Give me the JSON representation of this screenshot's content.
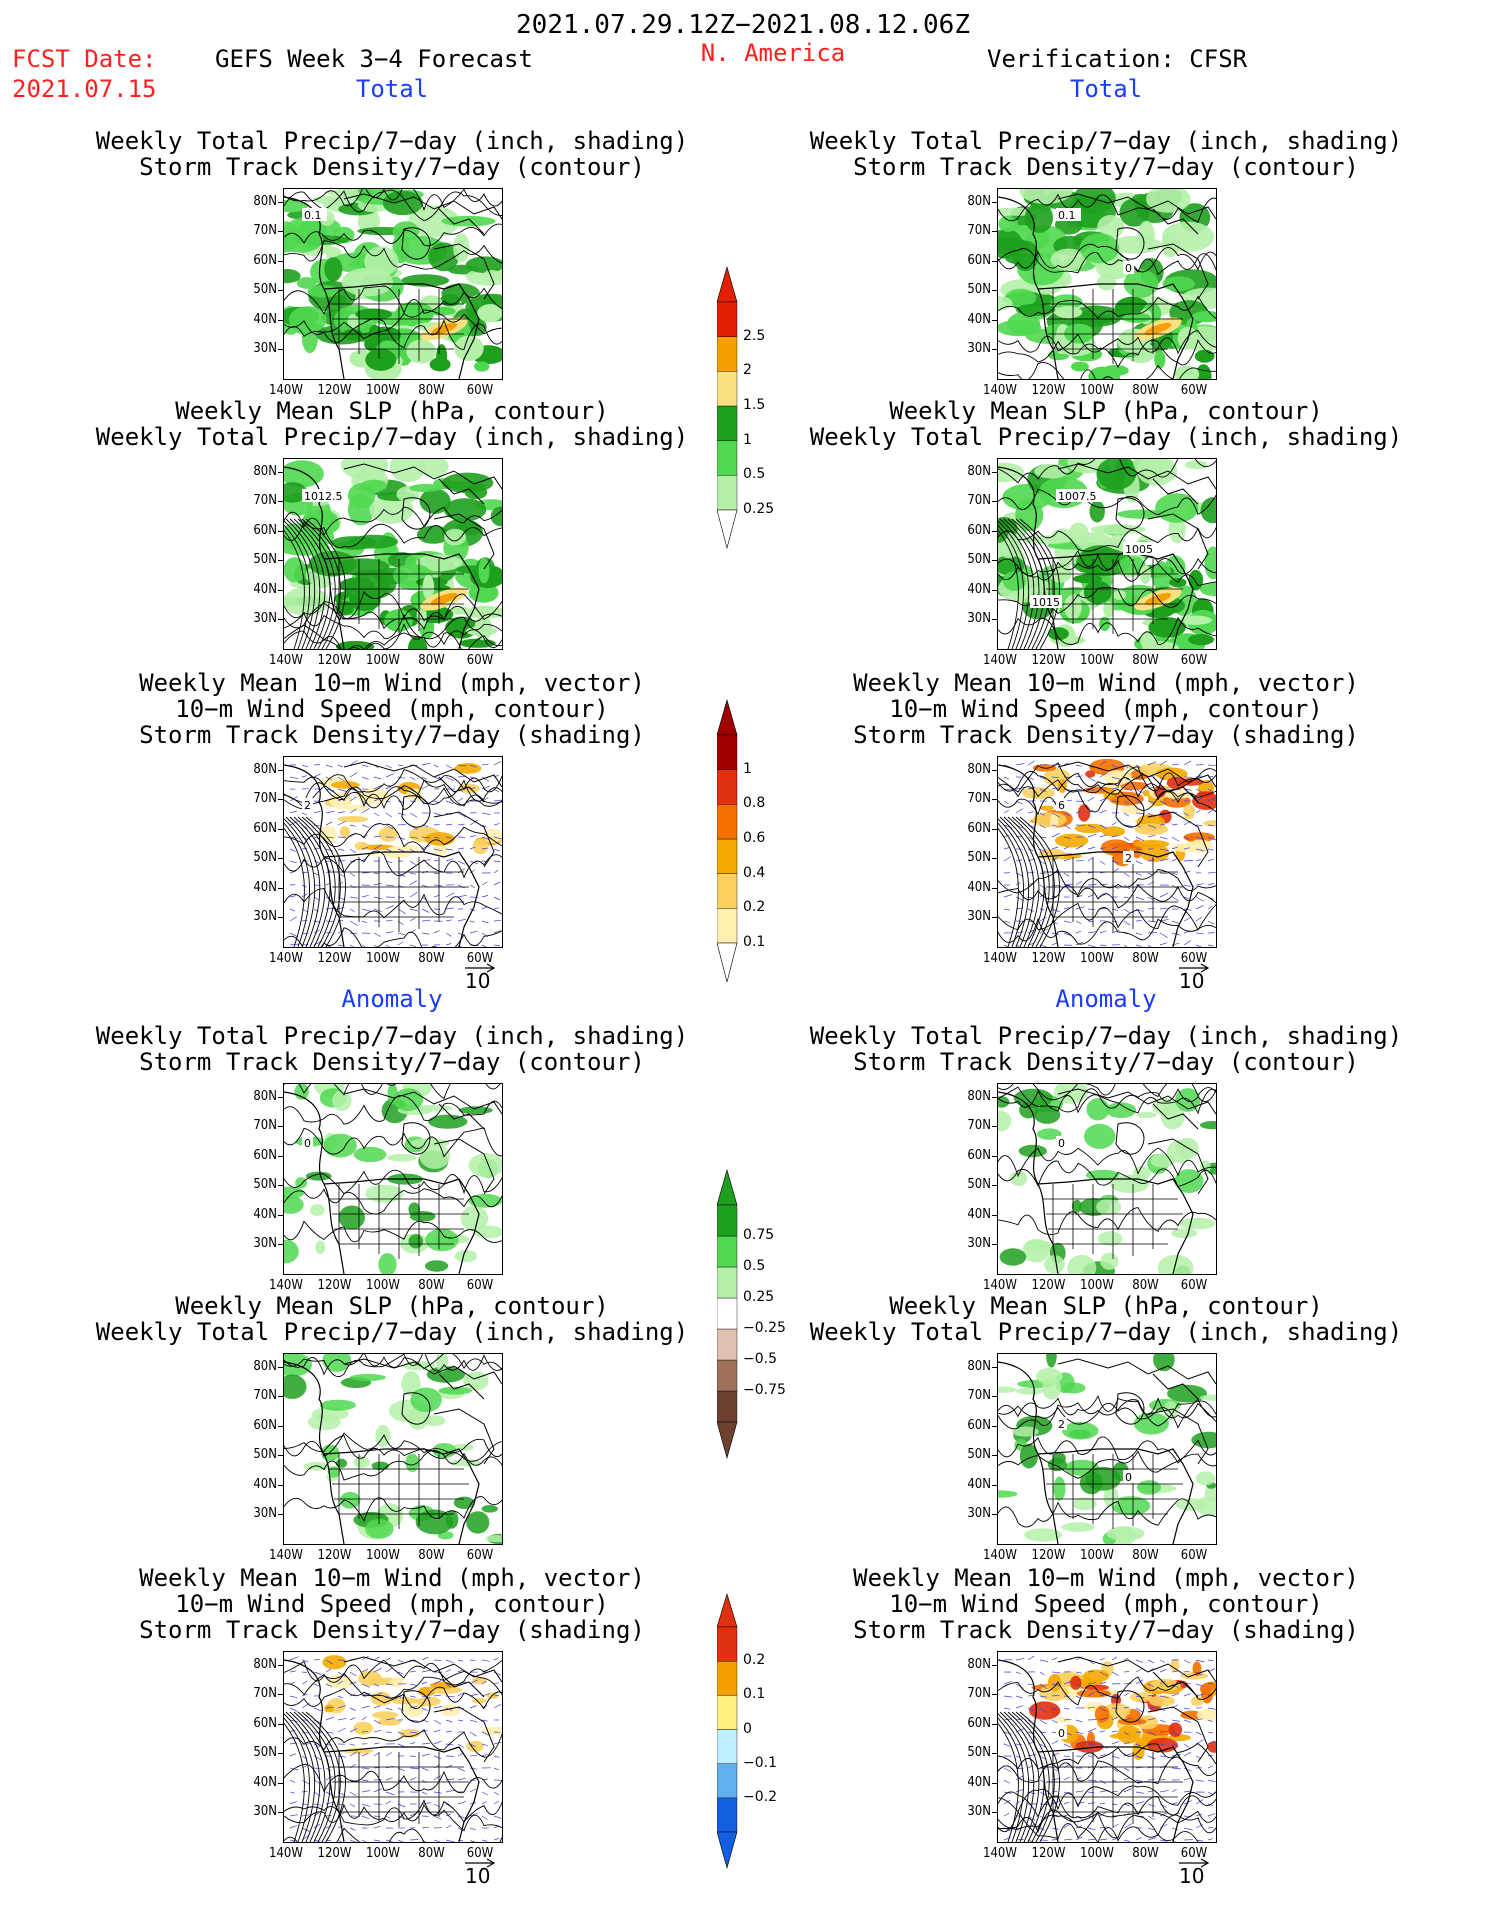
{
  "header": {
    "date_range": "2021.07.29.12Z−2021.08.12.06Z",
    "fcst_label": "FCST Date:",
    "fcst_date": "2021.07.15",
    "model_title": "GEFS Week 3−4 Forecast",
    "region": "N. America",
    "verification": "Verification: CFSR"
  },
  "sections": {
    "total_left": "Total",
    "total_right": "Total",
    "anomaly_left": "Anomaly",
    "anomaly_right": "Anomaly"
  },
  "panel_titles": {
    "precip_storm": [
      "Weekly Total Precip/7−day (inch, shading)",
      "Storm Track Density/7−day (contour)"
    ],
    "slp_precip": [
      "Weekly Mean SLP (hPa, contour)",
      "Weekly Total Precip/7−day (inch, shading)"
    ],
    "wind_storm": [
      "Weekly Mean 10−m Wind (mph, vector)",
      "10−m Wind Speed (mph, contour)",
      "Storm Track Density/7−day (shading)"
    ]
  },
  "axes": {
    "y_ticks": [
      "80N",
      "70N",
      "60N",
      "50N",
      "40N",
      "30N"
    ],
    "x_ticks": [
      "140W",
      "120W",
      "100W",
      "80W",
      "60W"
    ]
  },
  "vector_ref": "10",
  "colors": {
    "red_text": "#ff2020",
    "blue_text": "#1a3cff",
    "precip_light": "#b4f0a8",
    "precip_mid": "#50d850",
    "precip_dark": "#1ea01e",
    "precip_yellow": "#fae080",
    "precip_orange": "#f5a000",
    "precip_red": "#e02000",
    "storm_brown": "#8c5a4a"
  },
  "colorbars": [
    {
      "id": "total_precip",
      "labels": [
        "0.25",
        "0.5",
        "1",
        "1.5",
        "2",
        "2.5"
      ],
      "colors": [
        "#b4f0a8",
        "#50d850",
        "#1ea01e",
        "#fae080",
        "#f5a000",
        "#e02000"
      ]
    },
    {
      "id": "total_storm",
      "labels": [
        "0.1",
        "0.2",
        "0.4",
        "0.6",
        "0.8",
        "1"
      ],
      "colors": [
        "#fff0b0",
        "#fad060",
        "#f5a800",
        "#f57000",
        "#e03010",
        "#a00000"
      ]
    },
    {
      "id": "anom_precip",
      "labels": [
        "−0.75",
        "−0.5",
        "−0.25",
        "0.25",
        "0.5",
        "0.75"
      ],
      "colors": [
        "#6e4030",
        "#a0705a",
        "#e0c0b0",
        "#ffffff",
        "#b4f0a8",
        "#50d850",
        "#1ea01e"
      ]
    },
    {
      "id": "anom_storm",
      "labels": [
        "−0.2",
        "−0.1",
        "0",
        "0.1",
        "0.2"
      ],
      "colors": [
        "#1060e0",
        "#60b0f0",
        "#c0f0ff",
        "#fff080",
        "#f5a000",
        "#e03010"
      ]
    }
  ],
  "chart_data": [
    {
      "type": "heatmap",
      "panel": "Total / GEFS / precip + storm track",
      "contour_labels": [
        "0.1"
      ]
    },
    {
      "type": "heatmap",
      "panel": "Total / CFSR / precip + storm track",
      "contour_labels": [
        "0.1",
        "0"
      ]
    },
    {
      "type": "heatmap",
      "panel": "Total / GEFS / SLP + precip",
      "contour_labels": [
        "1012.5"
      ]
    },
    {
      "type": "heatmap",
      "panel": "Total / CFSR / SLP + precip",
      "contour_labels": [
        "1007.5",
        "1005",
        "1015"
      ]
    },
    {
      "type": "heatmap",
      "panel": "Total / GEFS / wind + storm track",
      "contour_labels": [
        "2"
      ]
    },
    {
      "type": "heatmap",
      "panel": "Total / CFSR / wind + storm track",
      "contour_labels": [
        "6",
        "2"
      ]
    },
    {
      "type": "heatmap",
      "panel": "Anomaly / GEFS / precip + storm track",
      "contour_labels": [
        "0"
      ]
    },
    {
      "type": "heatmap",
      "panel": "Anomaly / CFSR / precip + storm track",
      "contour_labels": [
        "0"
      ]
    },
    {
      "type": "heatmap",
      "panel": "Anomaly / GEFS / SLP + precip",
      "contour_labels": []
    },
    {
      "type": "heatmap",
      "panel": "Anomaly / CFSR / SLP + precip",
      "contour_labels": [
        "2",
        "0"
      ]
    },
    {
      "type": "heatmap",
      "panel": "Anomaly / GEFS / wind + storm track",
      "contour_labels": []
    },
    {
      "type": "heatmap",
      "panel": "Anomaly / CFSR / wind + storm track",
      "contour_labels": [
        "0"
      ]
    }
  ]
}
